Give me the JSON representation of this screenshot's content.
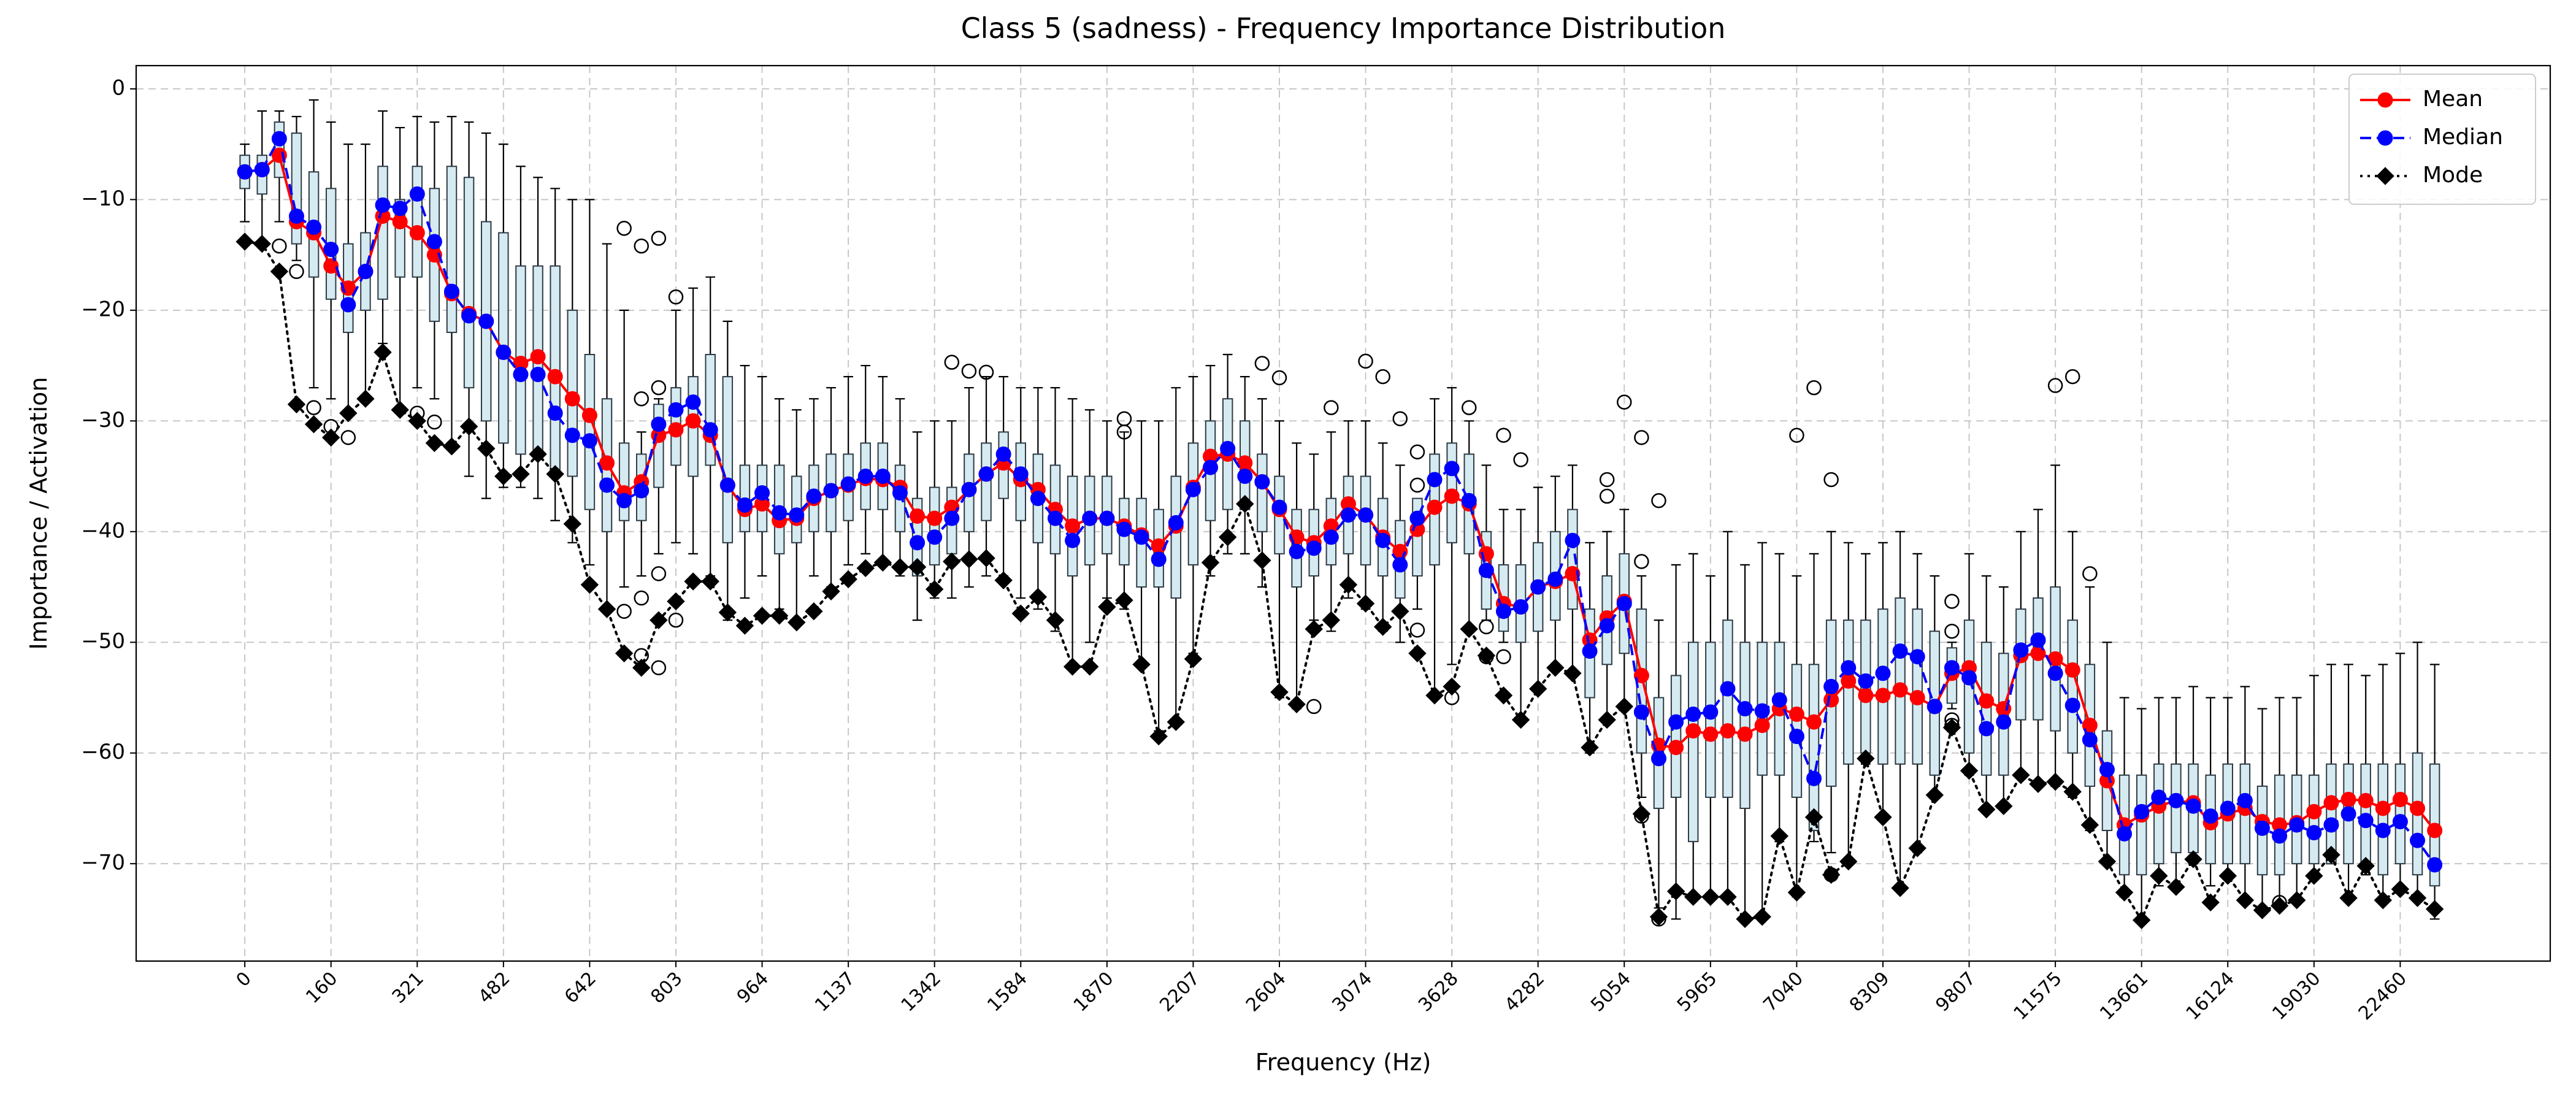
{
  "chart_data": {
    "type": "box",
    "title": "Class 5 (sadness) - Frequency Importance Distribution",
    "x_label": "Frequency (Hz)",
    "y_label": "Importance / Activation",
    "categories": [
      "0",
      null,
      null,
      null,
      null,
      "160",
      null,
      null,
      null,
      null,
      "321",
      null,
      null,
      null,
      null,
      "482",
      null,
      null,
      null,
      null,
      "642",
      null,
      null,
      null,
      null,
      "803",
      null,
      null,
      null,
      null,
      "964",
      null,
      null,
      null,
      null,
      "1137",
      null,
      null,
      null,
      null,
      "1342",
      null,
      null,
      null,
      null,
      "1584",
      null,
      null,
      null,
      null,
      "1870",
      null,
      null,
      null,
      null,
      "2207",
      null,
      null,
      null,
      null,
      "2604",
      null,
      null,
      null,
      null,
      "3074",
      null,
      null,
      null,
      null,
      "3628",
      null,
      null,
      null,
      null,
      "4282",
      null,
      null,
      null,
      null,
      "5054",
      null,
      null,
      null,
      null,
      "5965",
      null,
      null,
      null,
      null,
      "7040",
      null,
      null,
      null,
      null,
      "8309",
      null,
      null,
      null,
      null,
      "9807",
      null,
      null,
      null,
      null,
      "11575",
      null,
      null,
      null,
      null,
      "13661",
      null,
      null,
      null,
      null,
      "16124",
      null,
      null,
      null,
      null,
      "19030",
      null,
      null,
      null,
      null,
      "22460",
      null,
      null
    ],
    "ylim": [
      -78.8,
      2.1
    ],
    "yticks": [
      {
        "value": 0,
        "label": "0"
      },
      {
        "value": -10,
        "label": "−10"
      },
      {
        "value": -20,
        "label": "−20"
      },
      {
        "value": -30,
        "label": "−30"
      },
      {
        "value": -40,
        "label": "−40"
      },
      {
        "value": -50,
        "label": "−50"
      },
      {
        "value": -60,
        "label": "−60"
      },
      {
        "value": -70,
        "label": "−70"
      }
    ],
    "grid": true,
    "legend_position": "upper right",
    "box_color": "#d6eaf2",
    "box_edge_color": "#2f3b44",
    "box_median_color": "#ff7f0e",
    "boxes": {
      "q1": [
        -9,
        -9.5,
        -8,
        -14,
        -17,
        -19,
        -22,
        -20,
        -19,
        -17,
        -17,
        -21,
        -22,
        -27,
        -30,
        -32,
        -33,
        -33,
        -35,
        -35,
        -38,
        -40,
        -39,
        -39,
        -36,
        -34,
        -35,
        -34,
        -41,
        -40,
        -40,
        -42,
        -41,
        -40,
        -40,
        -39,
        -38,
        -38,
        -40,
        -44,
        -43,
        -42,
        -40,
        -39,
        -37,
        -39,
        -41,
        -42,
        -44,
        -43,
        -42,
        -43,
        -45,
        -45,
        -46,
        -43,
        -39,
        -38,
        -38,
        -40,
        -42,
        -45,
        -44,
        -43,
        -42,
        -43,
        -44,
        -46,
        -44,
        -43,
        -41,
        -42,
        -47,
        -49,
        -50,
        -49,
        -48,
        -47,
        -55,
        -52,
        -51,
        -60,
        -65,
        -64,
        -68,
        -64,
        -64,
        -65,
        -62,
        -62,
        -64,
        -67,
        -63,
        -61,
        -60,
        -61,
        -61,
        -61,
        -62,
        -55.5,
        -60,
        -62,
        -62,
        -57,
        -57,
        -58,
        -60,
        -63,
        -67,
        -71,
        -71,
        -70,
        -69,
        -69,
        -70,
        -70,
        -70,
        -71,
        -71,
        -70,
        -70,
        -70,
        -70,
        -70,
        -71,
        -70,
        -71,
        -72
      ],
      "q3": [
        -6,
        -6,
        -3,
        -4,
        -7.5,
        -9,
        -14,
        -13,
        -7,
        -10,
        -7,
        -9,
        -7,
        -8,
        -12,
        -13,
        -16,
        -16,
        -16,
        -20,
        -24,
        -28,
        -32,
        -33,
        -28.5,
        -27,
        -26,
        -24,
        -26,
        -34,
        -34,
        -34,
        -35,
        -34,
        -33,
        -33,
        -32,
        -32,
        -34,
        -37,
        -36,
        -36,
        -33,
        -32,
        -31,
        -32,
        -33,
        -34,
        -35,
        -35,
        -35,
        -37,
        -37,
        -38,
        -35,
        -32,
        -30,
        -28,
        -30,
        -33,
        -35,
        -38,
        -38,
        -37,
        -35,
        -35,
        -37,
        -39,
        -37,
        -33,
        -32,
        -33,
        -40,
        -43,
        -43,
        -41,
        -40,
        -38,
        -47,
        -44,
        -42,
        -47,
        -55,
        -53,
        -50,
        -50,
        -48,
        -50,
        -50,
        -50,
        -52,
        -52,
        -48,
        -48,
        -48,
        -47,
        -46,
        -47,
        -49,
        -50.5,
        -48,
        -50,
        -51,
        -47,
        -46,
        -45,
        -48,
        -52,
        -58,
        -62,
        -62,
        -61,
        -61,
        -61,
        -62,
        -61,
        -61,
        -63,
        -62,
        -62,
        -62,
        -61,
        -61,
        -61,
        -61,
        -61,
        -60,
        -61
      ],
      "whislo": [
        -12,
        -14,
        -12,
        -15.5,
        -27,
        -28,
        -29,
        -28,
        -23,
        -29,
        -27,
        -28,
        -32,
        -35,
        -37,
        -36,
        -36,
        -37,
        -39,
        -41,
        -43,
        -47,
        -45,
        -44,
        -42,
        -41,
        -42,
        -44,
        -48,
        -46,
        -44,
        -47,
        -48,
        -44,
        -45,
        -43,
        -42,
        -43,
        -44,
        -48,
        -46,
        -46,
        -45,
        -44,
        -44,
        -46,
        -47,
        -49,
        -52,
        -50,
        -46,
        -47,
        -52,
        -58,
        -57,
        -51,
        -44,
        -42,
        -42,
        -45,
        -55,
        -56,
        -48,
        -49,
        -46,
        -47,
        -49,
        -50,
        -47,
        -55,
        -52,
        -49,
        -48,
        -50,
        -57,
        -54,
        -52,
        -53,
        -60,
        -57,
        -56,
        -64,
        -74,
        -75,
        -73,
        -73,
        -73,
        -75,
        -75,
        -68,
        -73,
        -68,
        -69,
        -70,
        -61,
        -66,
        -72,
        -69,
        -64,
        -56,
        -62,
        -65,
        -65,
        -62,
        -63,
        -63,
        -64,
        -67,
        -70,
        -73,
        -75,
        -72,
        -72,
        -70,
        -72,
        -71,
        -73,
        -74,
        -74,
        -73,
        -71,
        -70,
        -73,
        -71,
        -73,
        -72,
        -73,
        -75
      ],
      "whishi": [
        -5,
        -2,
        -2,
        -2.5,
        -1,
        -3,
        -5,
        -5,
        -2,
        -3.5,
        -2.5,
        -3,
        -2.5,
        -3,
        -4,
        -5,
        -7,
        -8,
        -9,
        -10,
        -10,
        -14,
        -20,
        -31,
        -28,
        -20,
        -18,
        -17,
        -21,
        -25,
        -26,
        -28,
        -29,
        -28,
        -27,
        -26,
        -25,
        -26,
        -28,
        -31,
        -30,
        -30,
        -27,
        -26,
        -26,
        -27,
        -27,
        -27,
        -28,
        -29,
        -30,
        -31,
        -30,
        -30,
        -27,
        -26,
        -25,
        -24,
        -26,
        -28,
        -30,
        -32,
        -33,
        -31,
        -30,
        -30,
        -32,
        -34,
        -37.5,
        -28,
        -27,
        -30,
        -34,
        -38,
        -38,
        -36,
        -35,
        -34,
        -41,
        -40,
        -38,
        -44,
        -48,
        -43,
        -42,
        -44,
        -40,
        -43,
        -41,
        -42,
        -44,
        -42,
        -40,
        -41,
        -42,
        -41,
        -40,
        -42,
        -44,
        -50,
        -42,
        -44,
        -45,
        -40,
        -38,
        -34,
        -40,
        -45,
        -50,
        -55,
        -56,
        -55,
        -55,
        -54,
        -55,
        -55,
        -54,
        -56,
        -55,
        -55,
        -53,
        -52,
        -52,
        -53,
        -52,
        -51,
        -50,
        -52
      ],
      "outliers": [
        [],
        [],
        [
          -14.2
        ],
        [
          -16.5
        ],
        [
          -28.8
        ],
        [
          -30.5
        ],
        [
          -31.5
        ],
        [],
        [],
        [],
        [
          -29.3
        ],
        [
          -30.1
        ],
        [],
        [],
        [],
        [],
        [],
        [],
        [],
        [],
        [],
        [],
        [
          -12.6,
          -47.2
        ],
        [
          -14.2,
          -28,
          -46,
          -51.2
        ],
        [
          -13.5,
          -27,
          -43.8,
          -52.3
        ],
        [
          -18.8,
          -48
        ],
        [],
        [],
        [],
        [],
        [],
        [],
        [],
        [],
        [],
        [],
        [],
        [],
        [],
        [],
        [],
        [
          -24.7
        ],
        [
          -25.5
        ],
        [
          -25.6
        ],
        [],
        [],
        [],
        [],
        [],
        [],
        [],
        [
          -29.8,
          -31
        ],
        [],
        [],
        [],
        [],
        [],
        [],
        [],
        [
          -24.8
        ],
        [
          -26.1
        ],
        [],
        [
          -55.8
        ],
        [
          -28.8
        ],
        [],
        [
          -24.6
        ],
        [
          -26
        ],
        [
          -29.8
        ],
        [
          -32.8,
          -35.8,
          -48.9
        ],
        [],
        [
          -55
        ],
        [
          -28.8
        ],
        [
          -48.6,
          -51.3
        ],
        [
          -31.3,
          -51.3
        ],
        [
          -33.5
        ],
        [],
        [],
        [],
        [],
        [
          -35.3,
          -36.8
        ],
        [
          -28.3
        ],
        [
          -31.5,
          -42.7,
          -65.7
        ],
        [
          -37.2,
          -75
        ],
        [],
        [],
        [],
        [],
        [],
        [],
        [],
        [
          -31.3
        ],
        [
          -27
        ],
        [
          -35.3,
          -71
        ],
        [],
        [],
        [],
        [],
        [],
        [],
        [
          -46.3,
          -49,
          -57,
          -57.5
        ],
        [],
        [],
        [],
        [],
        [],
        [
          -26.8
        ],
        [
          -26
        ],
        [
          -43.8
        ],
        [],
        [],
        [],
        [],
        [],
        [],
        [],
        [],
        [],
        [],
        [
          -73.5
        ],
        [],
        [],
        [],
        [],
        [],
        [],
        [],
        [],
        [],
        [],
        [],
        [],
        []
      ]
    },
    "series": [
      {
        "name": "Mean",
        "color": "#ff0000",
        "linestyle": "solid",
        "marker": "circle",
        "values": [
          -7.5,
          -7.3,
          -6,
          -12,
          -13,
          -16,
          -18,
          -16.5,
          -11.5,
          -12,
          -13,
          -15,
          -18.5,
          -20.3,
          -21,
          -23.8,
          -24.8,
          -24.2,
          -26,
          -28,
          -29.5,
          -33.8,
          -36.5,
          -35.5,
          -31.3,
          -30.8,
          -30,
          -31.3,
          -35.8,
          -38,
          -37.5,
          -39,
          -38.8,
          -37,
          -36.3,
          -35.8,
          -35.2,
          -35.3,
          -36,
          -38.6,
          -38.8,
          -37.8,
          -36.2,
          -34.8,
          -33.8,
          -35.3,
          -36.2,
          -38,
          -39.5,
          -38.8,
          -38.8,
          -39.5,
          -40.3,
          -41.3,
          -39.5,
          -36,
          -33.2,
          -33,
          -33.8,
          -35.5,
          -38,
          -40.5,
          -41,
          -39.5,
          -37.5,
          -38.5,
          -40.5,
          -41.8,
          -39.8,
          -37.8,
          -36.8,
          -37.5,
          -42,
          -46.5,
          -46.8,
          -45,
          -44.5,
          -43.8,
          -49.8,
          -47.8,
          -46.3,
          -53,
          -59.3,
          -59.5,
          -58,
          -58.3,
          -58,
          -58.3,
          -57.5,
          -56,
          -56.5,
          -57.2,
          -55.2,
          -53.5,
          -54.8,
          -54.8,
          -54.3,
          -55,
          -55.8,
          -52.8,
          -52.3,
          -55.3,
          -56,
          -51.2,
          -51,
          -51.5,
          -52.5,
          -57.5,
          -62.5,
          -66.5,
          -65.6,
          -64.8,
          -64.3,
          -64.5,
          -66.3,
          -65.5,
          -65,
          -66.2,
          -66.5,
          -66.3,
          -65.3,
          -64.5,
          -64.2,
          -64.3,
          -65,
          -64.2,
          -65,
          -67
        ]
      },
      {
        "name": "Median",
        "color": "#0000ff",
        "linestyle": "dashed",
        "marker": "circle",
        "values": [
          -7.5,
          -7.3,
          -4.5,
          -11.5,
          -12.5,
          -14.5,
          -19.5,
          -16.5,
          -10.5,
          -10.8,
          -9.5,
          -13.8,
          -18.3,
          -20.5,
          -21,
          -23.8,
          -25.8,
          -25.8,
          -29.3,
          -31.3,
          -31.8,
          -35.8,
          -37.2,
          -36.3,
          -30.3,
          -29,
          -28.3,
          -30.8,
          -35.8,
          -37.6,
          -36.5,
          -38.3,
          -38.5,
          -36.8,
          -36.3,
          -35.7,
          -35,
          -35,
          -36.5,
          -41,
          -40.5,
          -38.8,
          -36.2,
          -34.8,
          -33,
          -34.8,
          -37,
          -38.8,
          -40.8,
          -38.8,
          -38.8,
          -39.8,
          -40.5,
          -42.5,
          -39.2,
          -36.2,
          -34.2,
          -32.5,
          -35,
          -35.5,
          -37.8,
          -41.8,
          -41.5,
          -40.5,
          -38.5,
          -38.5,
          -40.8,
          -43,
          -38.8,
          -35.3,
          -34.3,
          -37.2,
          -43.5,
          -47.2,
          -46.8,
          -45,
          -44.3,
          -40.8,
          -50.8,
          -48.5,
          -46.5,
          -56.3,
          -60.5,
          -57.2,
          -56.5,
          -56.3,
          -54.2,
          -56,
          -56.2,
          -55.2,
          -58.5,
          -62.3,
          -54,
          -52.3,
          -53.5,
          -52.8,
          -50.8,
          -51.3,
          -55.8,
          -52.3,
          -53.2,
          -57.8,
          -57.2,
          -50.7,
          -49.8,
          -52.8,
          -55.7,
          -58.8,
          -61.5,
          -67.3,
          -65.3,
          -64,
          -64.3,
          -64.8,
          -65.7,
          -65,
          -64.3,
          -66.8,
          -67.5,
          -66.5,
          -67.2,
          -66.5,
          -65.5,
          -66.1,
          -67,
          -66.2,
          -67.9,
          -70.1
        ]
      },
      {
        "name": "Mode",
        "color": "#000000",
        "linestyle": "dotted",
        "marker": "diamond",
        "values": [
          -13.8,
          -14,
          -16.5,
          -28.5,
          -30.3,
          -31.5,
          -29.3,
          -28,
          -23.8,
          -29,
          -30,
          -32,
          -32.3,
          -30.5,
          -32.5,
          -35,
          -34.8,
          -33,
          -34.8,
          -39.3,
          -44.8,
          -47,
          -51,
          -52.3,
          -48,
          -46.3,
          -44.5,
          -44.5,
          -47.3,
          -48.5,
          -47.6,
          -47.6,
          -48.2,
          -47.2,
          -45.4,
          -44.3,
          -43.3,
          -42.8,
          -43.2,
          -43.2,
          -45.2,
          -42.7,
          -42.5,
          -42.4,
          -44.4,
          -47.4,
          -45.9,
          -48,
          -52.2,
          -52.2,
          -46.8,
          -46.2,
          -52,
          -58.5,
          -57.2,
          -51.5,
          -42.8,
          -40.5,
          -37.5,
          -42.6,
          -54.5,
          -55.6,
          -48.8,
          -48,
          -44.8,
          -46.5,
          -48.6,
          -47.2,
          -51,
          -54.8,
          -54,
          -48.8,
          -51.2,
          -54.8,
          -57,
          -54.2,
          -52.3,
          -52.8,
          -59.5,
          -57,
          -55.8,
          -65.5,
          -74.8,
          -72.5,
          -73,
          -73,
          -73,
          -75,
          -74.8,
          -67.5,
          -72.6,
          -65.8,
          -71,
          -69.8,
          -60.5,
          -65.8,
          -72.2,
          -68.6,
          -63.8,
          -57.7,
          -61.6,
          -65.1,
          -64.8,
          -62,
          -62.8,
          -62.6,
          -63.5,
          -66.5,
          -69.8,
          -72.6,
          -75.1,
          -71.1,
          -72.1,
          -69.6,
          -73.5,
          -71.1,
          -73.3,
          -74.2,
          -73.8,
          -73.3,
          -71.1,
          -69.2,
          -73.1,
          -70.2,
          -73.3,
          -72.3,
          -73.1,
          -74.1
        ]
      }
    ]
  }
}
